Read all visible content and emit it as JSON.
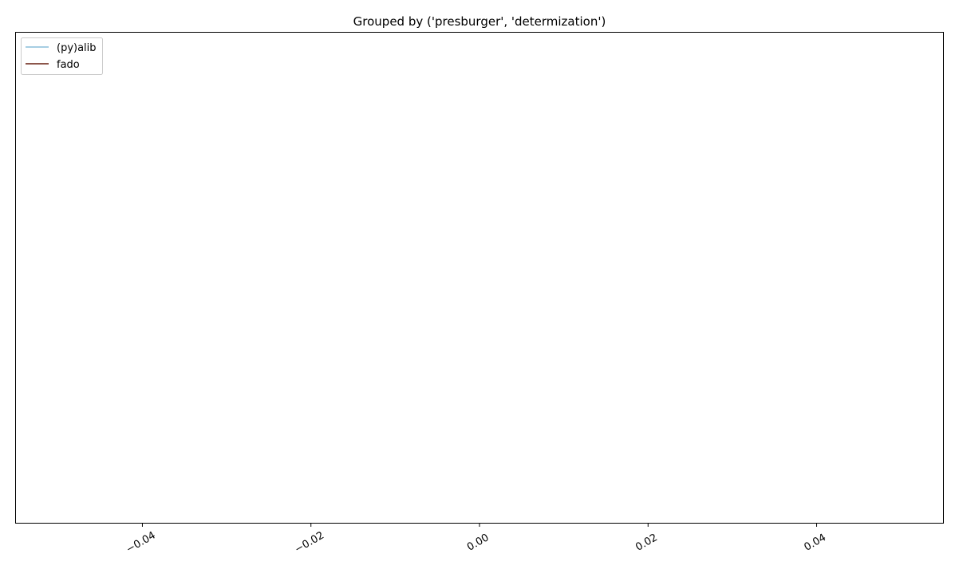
{
  "chart_data": {
    "type": "line",
    "title": "Grouped by ('presburger', 'determization')",
    "xlabel": "",
    "ylabel": "",
    "xlim": [
      -0.055,
      0.055
    ],
    "x_ticks": [
      -0.04,
      -0.02,
      0.0,
      0.02,
      0.04
    ],
    "x_tick_labels": [
      "−0.04",
      "−0.02",
      "0.00",
      "0.02",
      "0.04"
    ],
    "grid": false,
    "legend_position": "top-left",
    "series": [
      {
        "name": "(py)alib",
        "color": "#a6cee3",
        "x": [],
        "y": []
      },
      {
        "name": "fado",
        "color": "#8c564b",
        "x": [],
        "y": []
      }
    ]
  }
}
